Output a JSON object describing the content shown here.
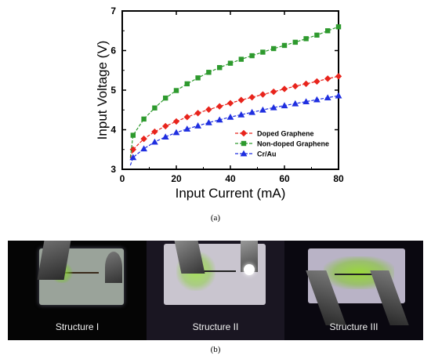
{
  "chart_data": {
    "type": "line",
    "xlabel": "Input Current (mA)",
    "ylabel": "Input Voltage (V)",
    "xlim": [
      0,
      80
    ],
    "ylim": [
      3,
      7
    ],
    "xticks": [
      0,
      20,
      40,
      60,
      80
    ],
    "yticks": [
      3,
      4,
      5,
      6,
      7
    ],
    "grid": false,
    "legend_position": "bottom-right",
    "x": [
      3,
      4,
      8,
      12,
      16,
      20,
      24,
      28,
      32,
      36,
      40,
      44,
      48,
      52,
      56,
      60,
      64,
      68,
      72,
      76,
      80
    ],
    "series": [
      {
        "name": "Doped Graphene",
        "color": "#e8241c",
        "marker": "diamond",
        "values": [
          3.28,
          3.5,
          3.77,
          3.95,
          4.09,
          4.21,
          4.32,
          4.42,
          4.51,
          4.59,
          4.67,
          4.75,
          4.82,
          4.89,
          4.96,
          5.03,
          5.1,
          5.16,
          5.22,
          5.29,
          5.35
        ]
      },
      {
        "name": "Non-doped Graphene",
        "color": "#2e9a2e",
        "marker": "square",
        "values": [
          3.3,
          3.86,
          4.27,
          4.55,
          4.8,
          4.99,
          5.16,
          5.31,
          5.45,
          5.57,
          5.68,
          5.78,
          5.87,
          5.96,
          6.05,
          6.13,
          6.21,
          6.3,
          6.39,
          6.5,
          6.6
        ]
      },
      {
        "name": "Cr/Au",
        "color": "#1f2fe0",
        "marker": "triangle",
        "values": [
          3.1,
          3.3,
          3.52,
          3.69,
          3.82,
          3.93,
          4.02,
          4.1,
          4.18,
          4.25,
          4.32,
          4.38,
          4.44,
          4.5,
          4.56,
          4.61,
          4.66,
          4.71,
          4.76,
          4.81,
          4.86
        ]
      }
    ]
  },
  "captions": {
    "a": "(a)",
    "b": "(b)"
  },
  "photos": [
    {
      "label": "Structure I"
    },
    {
      "label": "Structure II"
    },
    {
      "label": "Structure III"
    }
  ]
}
